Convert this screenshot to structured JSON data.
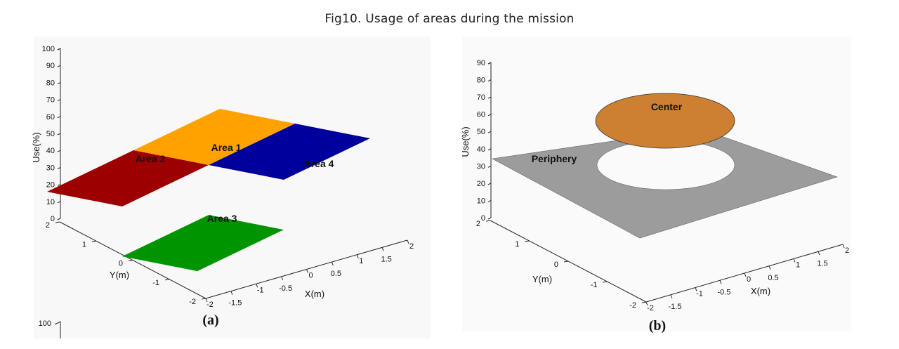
{
  "figure_title": "Fig10. Usage of areas during the mission",
  "chart_data": [
    {
      "panel": "(a)",
      "type": "3d-surface",
      "zlabel": "Use(%)",
      "xlabel": "X(m)",
      "ylabel": "Y(m)",
      "zticks": [
        "100",
        "90",
        "80",
        "70",
        "60",
        "50",
        "40",
        "30",
        "20",
        "10",
        "0"
      ],
      "xticks": [
        "-2",
        "-1.5",
        "-1",
        "-0.5",
        "0",
        "0.5",
        "1",
        "1.5",
        "2"
      ],
      "yticks": [
        "2",
        "1",
        "0",
        "-1",
        "-2"
      ],
      "zlim": [
        0,
        100
      ],
      "extra_tick": "100",
      "series": [
        {
          "name": "Area 1",
          "x": [
            0,
            2
          ],
          "y": [
            0,
            2
          ],
          "use": 30,
          "color": "#ffa200"
        },
        {
          "name": "Area 2",
          "x": [
            -2,
            0
          ],
          "y": [
            0,
            2
          ],
          "use": 30,
          "color": "#9c0000"
        },
        {
          "name": "Area 3",
          "x": [
            -2,
            0
          ],
          "y": [
            -2,
            0
          ],
          "use": 0,
          "color": "#009400"
        },
        {
          "name": "Area 4",
          "x": [
            0,
            2
          ],
          "y": [
            -2,
            0
          ],
          "use": 30,
          "color": "#00009c"
        }
      ]
    },
    {
      "panel": "(b)",
      "type": "3d-surface",
      "zlabel": "Use(%)",
      "xlabel": "X(m)",
      "ylabel": "Y(m)",
      "zticks": [
        "90",
        "80",
        "70",
        "60",
        "50",
        "40",
        "30",
        "20",
        "10",
        "0"
      ],
      "xticks": [
        "-2",
        "-1.5",
        "-1",
        "-0.5",
        "0",
        "0.5",
        "1",
        "1.5",
        "2"
      ],
      "yticks": [
        "2",
        "1",
        "0",
        "-1",
        "-2"
      ],
      "zlim": [
        0,
        90
      ],
      "series": [
        {
          "name": "Periphery",
          "region": "outside circle",
          "use": 35,
          "color": "#9c9c9c"
        },
        {
          "name": "Center",
          "region": "inside circle",
          "use": 65,
          "color": "#cd7f32"
        }
      ]
    }
  ]
}
